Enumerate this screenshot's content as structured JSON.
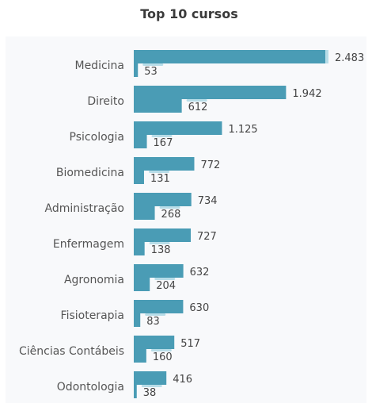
{
  "chart_data": {
    "type": "bar",
    "title": "Top 10 cursos",
    "categories": [
      "Medicina",
      "Direito",
      "Psicologia",
      "Biomedicina",
      "Administração",
      "Enfermagem",
      "Agronomia",
      "Fisioterapia",
      "Ciências Contábeis",
      "Odontologia"
    ],
    "series": [
      {
        "values": [
          2483,
          1942,
          1125,
          772,
          734,
          727,
          632,
          630,
          517,
          416
        ],
        "labels": [
          "2.483",
          "1.942",
          "1.125",
          "772",
          "734",
          "727",
          "632",
          "630",
          "517",
          "416"
        ]
      },
      {
        "values": [
          53,
          612,
          167,
          131,
          268,
          138,
          204,
          83,
          160,
          38
        ],
        "labels": [
          "53",
          "612",
          "167",
          "131",
          "268",
          "138",
          "204",
          "83",
          "160",
          "38"
        ]
      }
    ],
    "orientation": "horizontal",
    "xlim": [
      0,
      2483
    ],
    "grid": false,
    "colors": {
      "primary": "#4a9cb5",
      "accent": "#b8dde8",
      "label": "#444444",
      "category": "#555555"
    }
  }
}
